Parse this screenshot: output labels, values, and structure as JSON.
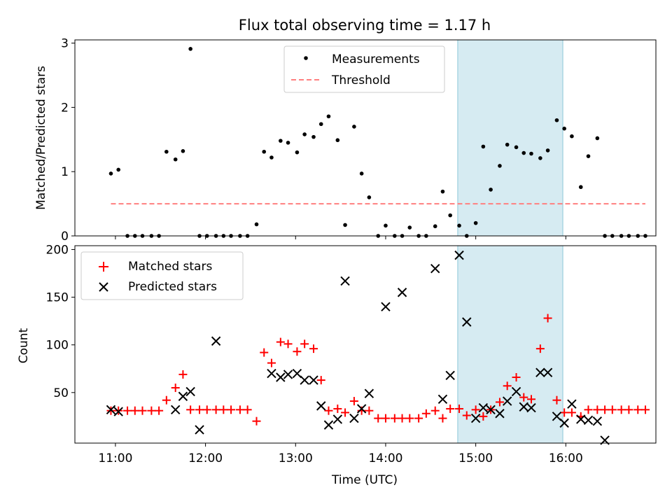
{
  "title": "Flux total observing time = 1.17 h",
  "xlabel": "Time (UTC)",
  "colors": {
    "shade": "#add8e6",
    "matched": "#ff0000",
    "predicted": "#000000",
    "threshold": "#ff7f7f"
  },
  "chart_data": [
    {
      "type": "scatter",
      "title": "Flux total observing time = 1.17 h",
      "ylabel": "Matched/Predicted stars",
      "ylim": [
        0,
        3.05
      ],
      "yticks": [
        "0",
        "1",
        "2",
        "3"
      ],
      "xticks": [
        "11:00",
        "12:00",
        "13:00",
        "14:00",
        "15:00",
        "16:00"
      ],
      "shaded_interval": [
        "14:48",
        "15:58"
      ],
      "legend_position": "upper center",
      "series": [
        {
          "name": "Measurements",
          "x": [
            "10:57",
            "11:02",
            "11:08",
            "11:13",
            "11:18",
            "11:24",
            "11:29",
            "11:34",
            "11:40",
            "11:45",
            "11:50",
            "11:56",
            "12:01",
            "12:07",
            "12:12",
            "12:17",
            "12:23",
            "12:28",
            "12:34",
            "12:39",
            "12:44",
            "12:50",
            "12:55",
            "13:01",
            "13:06",
            "13:12",
            "13:17",
            "13:22",
            "13:28",
            "13:33",
            "13:39",
            "13:44",
            "13:49",
            "13:55",
            "14:00",
            "14:06",
            "14:11",
            "14:16",
            "14:22",
            "14:27",
            "14:33",
            "14:38",
            "14:43",
            "14:49",
            "14:54",
            "15:00",
            "15:05",
            "15:10",
            "15:16",
            "15:21",
            "15:27",
            "15:32",
            "15:37",
            "15:43",
            "15:48",
            "15:54",
            "15:59",
            "16:04",
            "16:10",
            "16:15",
            "16:21",
            "16:26",
            "16:31",
            "16:37",
            "16:42",
            "16:48",
            "16:53"
          ],
          "y": [
            0.97,
            1.03,
            0,
            0,
            0,
            0,
            0,
            1.31,
            1.19,
            1.32,
            2.91,
            0,
            0,
            0,
            0,
            0,
            0,
            0,
            0.18,
            1.31,
            1.22,
            1.48,
            1.45,
            1.3,
            1.58,
            1.54,
            1.74,
            1.86,
            1.49,
            0.17,
            1.7,
            0.97,
            0.6,
            0,
            0.16,
            0,
            0,
            0.13,
            0,
            0,
            0.15,
            0.69,
            0.32,
            0.16,
            0,
            0.2,
            1.39,
            0.72,
            1.09,
            1.42,
            1.38,
            1.29,
            1.28,
            1.21,
            1.33,
            1.8,
            1.67,
            1.55,
            0.76,
            1.24,
            1.52,
            0,
            0,
            0,
            0,
            0,
            0
          ]
        },
        {
          "name": "Threshold",
          "x": [
            "10:57",
            "16:53"
          ],
          "y": [
            0.5,
            0.5
          ]
        }
      ]
    },
    {
      "type": "scatter",
      "ylabel": "Count",
      "xlabel": "Time (UTC)",
      "ylim": [
        0,
        204
      ],
      "yticks": [
        "50",
        "100",
        "150",
        "200"
      ],
      "xticks": [
        "11:00",
        "12:00",
        "13:00",
        "14:00",
        "15:00",
        "16:00"
      ],
      "shaded_interval": [
        "14:48",
        "15:58"
      ],
      "legend_position": "upper left",
      "series": [
        {
          "name": "Matched stars",
          "x": [
            "10:57",
            "11:02",
            "11:08",
            "11:13",
            "11:18",
            "11:24",
            "11:29",
            "11:34",
            "11:40",
            "11:45",
            "11:50",
            "11:56",
            "12:01",
            "12:07",
            "12:12",
            "12:17",
            "12:23",
            "12:28",
            "12:34",
            "12:39",
            "12:44",
            "12:50",
            "12:55",
            "13:01",
            "13:06",
            "13:12",
            "13:17",
            "13:22",
            "13:28",
            "13:33",
            "13:39",
            "13:44",
            "13:49",
            "13:55",
            "14:00",
            "14:06",
            "14:11",
            "14:16",
            "14:22",
            "14:27",
            "14:33",
            "14:38",
            "14:43",
            "14:49",
            "14:54",
            "15:00",
            "15:05",
            "15:10",
            "15:16",
            "15:21",
            "15:27",
            "15:32",
            "15:37",
            "15:43",
            "15:48",
            "15:54",
            "15:59",
            "16:04",
            "16:10",
            "16:15",
            "16:21",
            "16:26",
            "16:31",
            "16:37",
            "16:42",
            "16:48",
            "16:53"
          ],
          "y": [
            31,
            31,
            31,
            31,
            31,
            31,
            31,
            42,
            55,
            69,
            32,
            32,
            32,
            32,
            32,
            32,
            32,
            32,
            20,
            92,
            81,
            103,
            101,
            93,
            101,
            96,
            63,
            31,
            33,
            29,
            41,
            31,
            31,
            23,
            23,
            23,
            23,
            23,
            23,
            28,
            31,
            23,
            33,
            33,
            26,
            32,
            25,
            32,
            40,
            57,
            66,
            45,
            43,
            96,
            128,
            42,
            29,
            29,
            25,
            32,
            32,
            32,
            32,
            32,
            32,
            32,
            32
          ]
        },
        {
          "name": "Predicted stars",
          "x": [
            "10:57",
            "11:02",
            "11:40",
            "11:45",
            "11:50",
            "11:56",
            "12:07",
            "12:44",
            "12:50",
            "12:55",
            "13:01",
            "13:06",
            "13:12",
            "13:17",
            "13:22",
            "13:28",
            "13:33",
            "13:39",
            "13:44",
            "13:49",
            "14:00",
            "14:11",
            "14:33",
            "14:38",
            "14:43",
            "14:49",
            "14:54",
            "15:00",
            "15:05",
            "15:10",
            "15:16",
            "15:21",
            "15:27",
            "15:32",
            "15:37",
            "15:43",
            "15:48",
            "15:54",
            "15:59",
            "16:04",
            "16:10",
            "16:15",
            "16:21",
            "16:26"
          ],
          "y": [
            32,
            30,
            32,
            46,
            51,
            11,
            104,
            70,
            66,
            69,
            70,
            63,
            63,
            36,
            16,
            22,
            167,
            23,
            33,
            49,
            140,
            155,
            180,
            43,
            68,
            194,
            124,
            23,
            34,
            32,
            28,
            41,
            51,
            35,
            34,
            71,
            71,
            25,
            18,
            38,
            22,
            21,
            20,
            0
          ]
        }
      ]
    }
  ]
}
